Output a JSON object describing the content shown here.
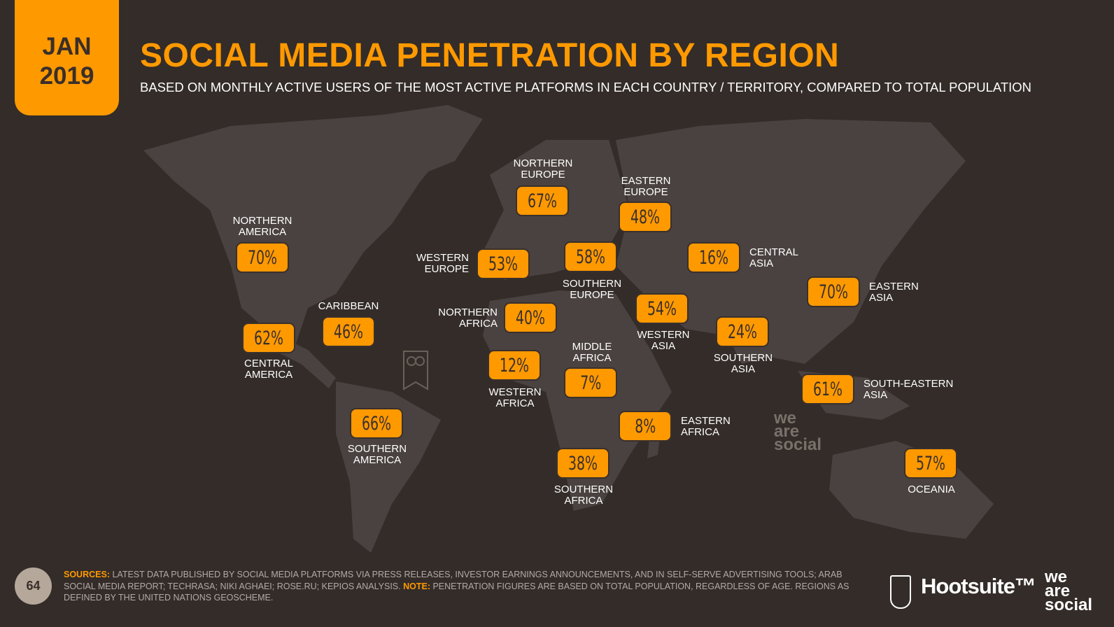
{
  "header": {
    "date_month": "JAN",
    "date_year": "2019",
    "title": "SOCIAL MEDIA PENETRATION BY REGION",
    "subtitle": "BASED ON MONTHLY ACTIVE USERS OF THE MOST ACTIVE PLATFORMS IN EACH COUNTRY / TERRITORY, COMPARED TO TOTAL POPULATION"
  },
  "colors": {
    "background": "#332c29",
    "land": "#4a4240",
    "accent": "#ff9900"
  },
  "regions": [
    {
      "name": "NORTHERN\nAMERICA",
      "value": "70%"
    },
    {
      "name": "CENTRAL\nAMERICA",
      "value": "62%"
    },
    {
      "name": "CARIBBEAN",
      "value": "46%"
    },
    {
      "name": "SOUTHERN\nAMERICA",
      "value": "66%"
    },
    {
      "name": "NORTHERN\nEUROPE",
      "value": "67%"
    },
    {
      "name": "WESTERN\nEUROPE",
      "value": "53%"
    },
    {
      "name": "SOUTHERN\nEUROPE",
      "value": "58%"
    },
    {
      "name": "EASTERN\nEUROPE",
      "value": "48%"
    },
    {
      "name": "CENTRAL\nASIA",
      "value": "16%"
    },
    {
      "name": "NORTHERN\nAFRICA",
      "value": "40%"
    },
    {
      "name": "WESTERN\nAFRICA",
      "value": "12%"
    },
    {
      "name": "MIDDLE\nAFRICA",
      "value": "7%"
    },
    {
      "name": "WESTERN\nASIA",
      "value": "54%"
    },
    {
      "name": "SOUTHERN\nASIA",
      "value": "24%"
    },
    {
      "name": "EASTERN\nASIA",
      "value": "70%"
    },
    {
      "name": "SOUTH-EASTERN\nASIA",
      "value": "61%"
    },
    {
      "name": "EASTERN\nAFRICA",
      "value": "8%"
    },
    {
      "name": "SOUTHERN\nAFRICA",
      "value": "38%"
    },
    {
      "name": "OCEANIA",
      "value": "57%"
    }
  ],
  "footer": {
    "page_number": "64",
    "sources_label": "SOURCES:",
    "sources_text": " LATEST DATA PUBLISHED BY SOCIAL MEDIA PLATFORMS VIA PRESS RELEASES, INVESTOR EARNINGS ANNOUNCEMENTS, AND IN SELF-SERVE ADVERTISING TOOLS; ARAB SOCIAL MEDIA REPORT; TECHRASA; NIKI AGHAEI; ROSE.RU; KEPIOS ANALYSIS. ",
    "note_label": "NOTE:",
    "note_text": " PENETRATION FIGURES ARE BASED ON TOTAL POPULATION, REGARDLESS OF AGE. REGIONS AS DEFINED BY THE UNITED NATIONS GEOSCHEME."
  },
  "logos": {
    "hootsuite": "Hootsuite™",
    "we_are_social": "we\nare\nsocial"
  }
}
